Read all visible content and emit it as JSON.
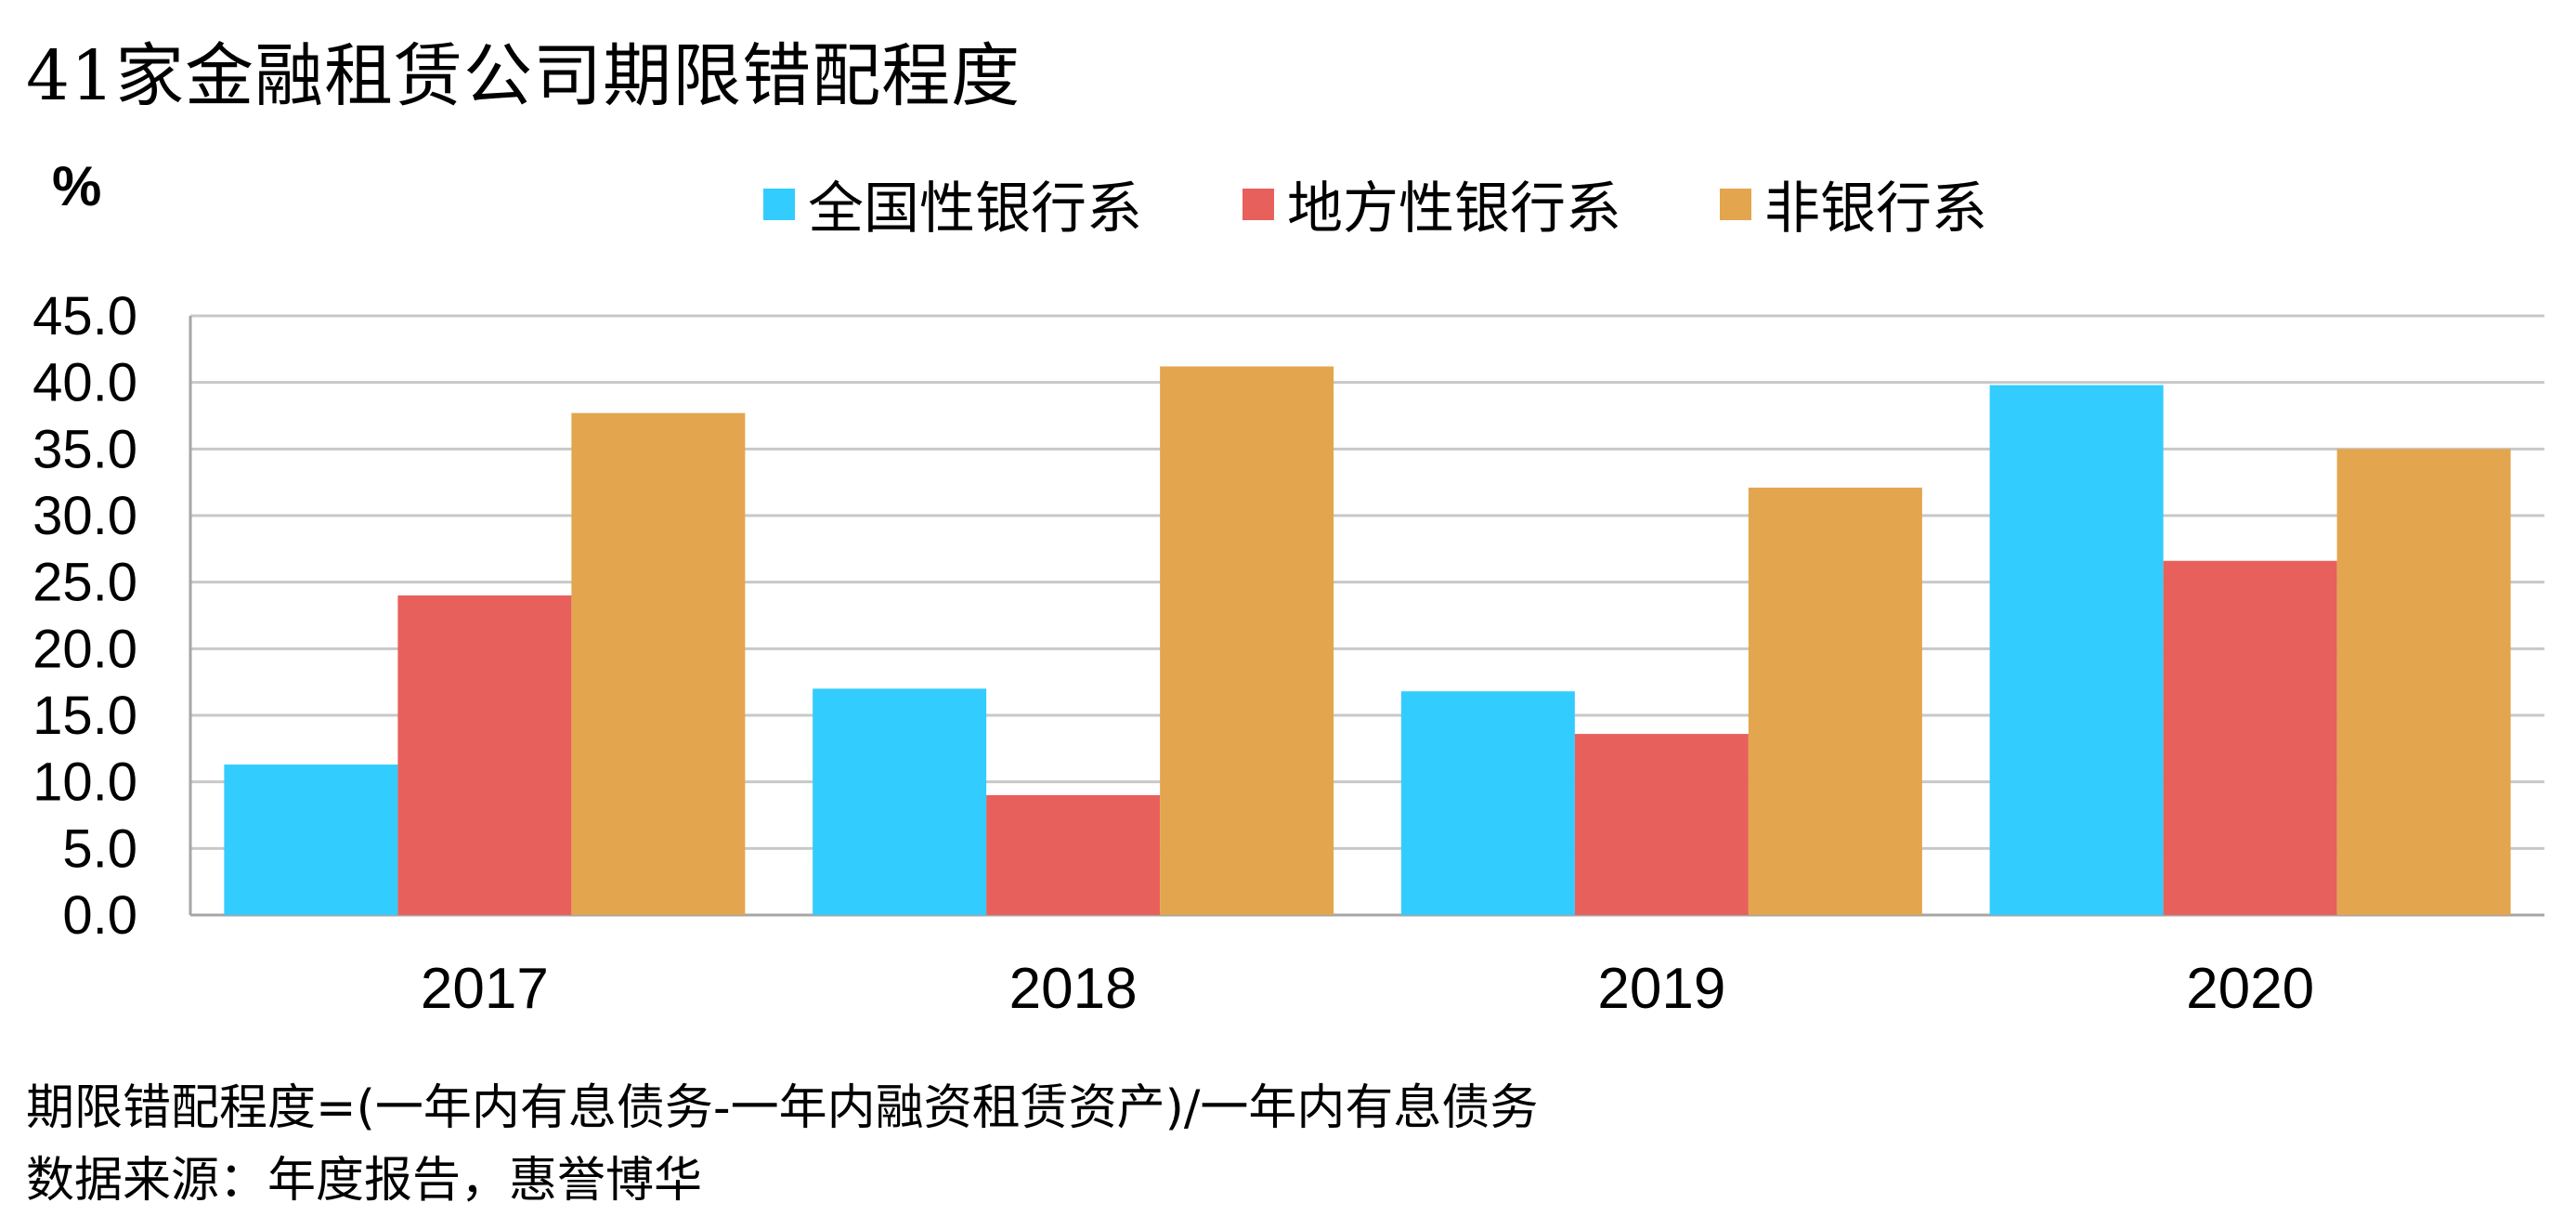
{
  "chart_data": {
    "type": "bar",
    "title": "41家金融租赁公司期限错配程度",
    "ylabel": "%",
    "categories": [
      "2017",
      "2018",
      "2019",
      "2020"
    ],
    "series": [
      {
        "name": "全国性银行系",
        "color": "#33CCFF",
        "values": [
          11.3,
          17.0,
          16.8,
          39.8
        ]
      },
      {
        "name": "地方性银行系",
        "color": "#E8605C",
        "values": [
          24.0,
          9.0,
          13.6,
          26.6
        ]
      },
      {
        "name": "非银行系",
        "color": "#E3A54E",
        "values": [
          37.7,
          41.2,
          32.1,
          35.0
        ]
      }
    ],
    "ylim": [
      0,
      45
    ],
    "yticks": [
      "0.0",
      "5.0",
      "10.0",
      "15.0",
      "20.0",
      "25.0",
      "30.0",
      "35.0",
      "40.0",
      "45.0"
    ],
    "grid": true,
    "legend_position": "top-center"
  },
  "notes": {
    "definition": "期限错配程度=(一年内有息债务-一年内融资租赁资产)/一年内有息债务",
    "source": "数据来源：年度报告，惠誉博华"
  }
}
